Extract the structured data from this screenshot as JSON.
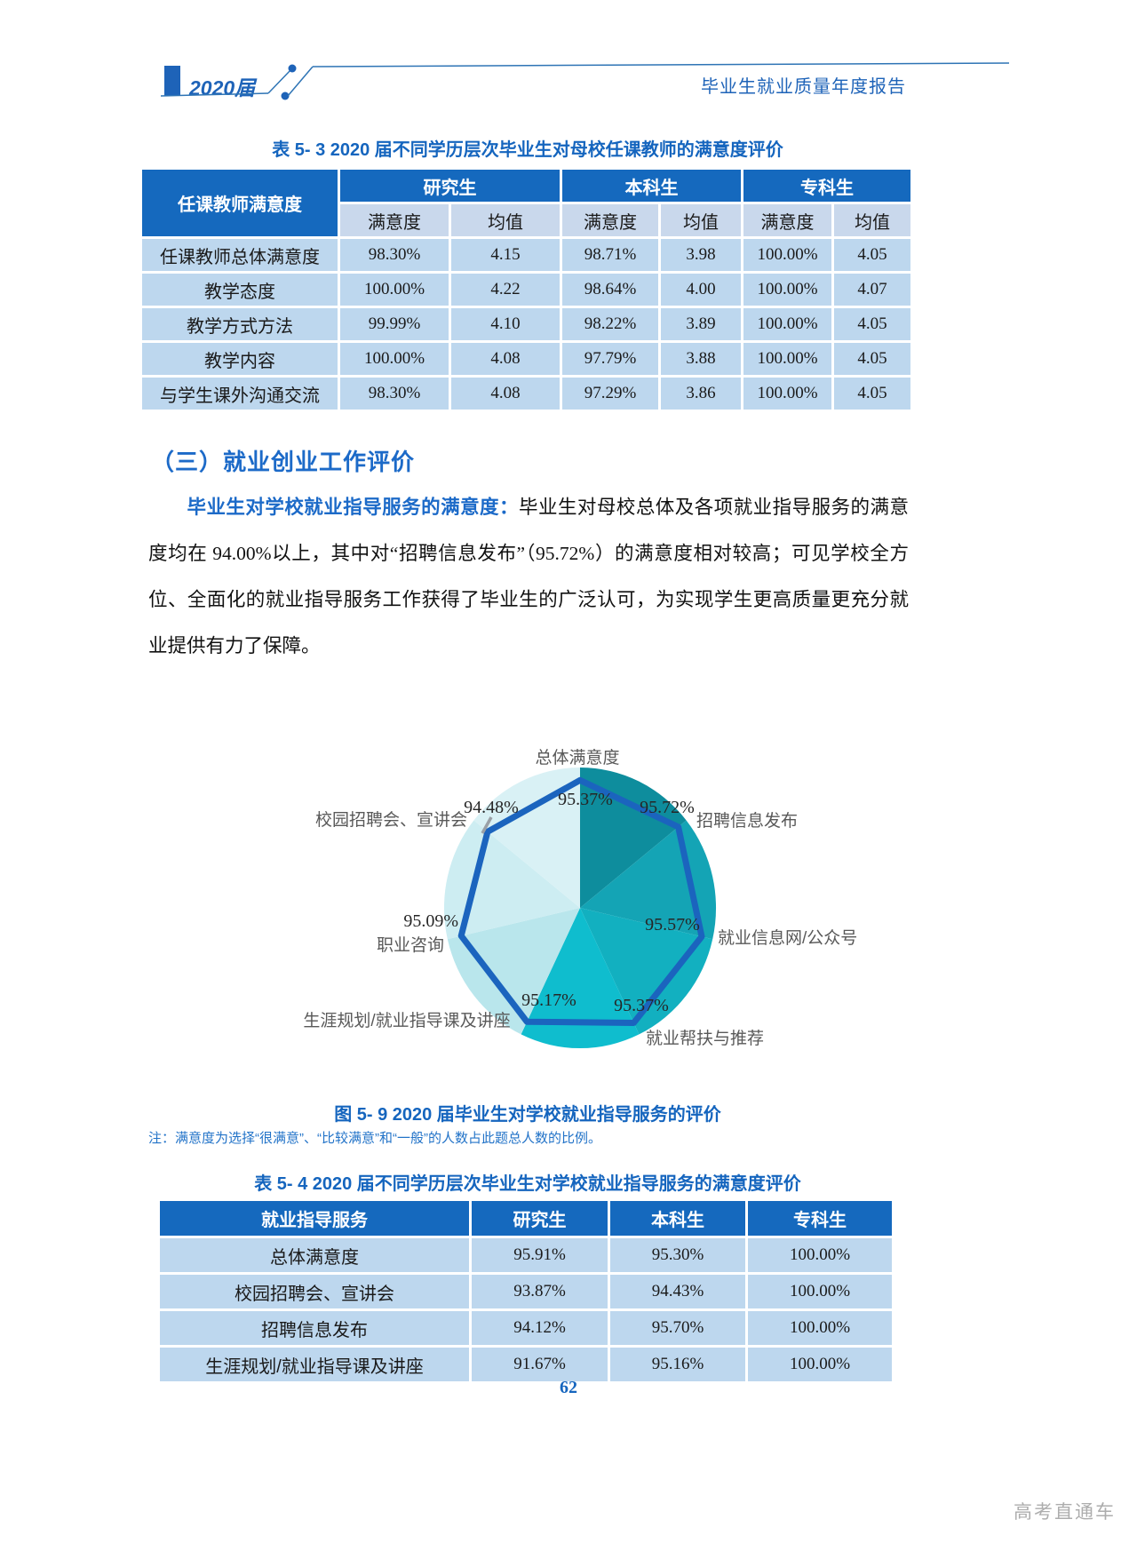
{
  "header": {
    "cohort": "2020届",
    "report_title": "毕业生就业质量年度报告"
  },
  "table53": {
    "title": "表 5- 3  2020 届不同学历层次毕业生对母校任课教师的满意度评价",
    "corner": "任课教师满意度",
    "groups": [
      "研究生",
      "本科生",
      "专科生"
    ],
    "subheaders": [
      "满意度",
      "均值"
    ],
    "rows": [
      {
        "label": "任课教师总体满意度",
        "cells": [
          "98.30%",
          "4.15",
          "98.71%",
          "3.98",
          "100.00%",
          "4.05"
        ]
      },
      {
        "label": "教学态度",
        "cells": [
          "100.00%",
          "4.22",
          "98.64%",
          "4.00",
          "100.00%",
          "4.07"
        ]
      },
      {
        "label": "教学方式方法",
        "cells": [
          "99.99%",
          "4.10",
          "98.22%",
          "3.89",
          "100.00%",
          "4.05"
        ]
      },
      {
        "label": "教学内容",
        "cells": [
          "100.00%",
          "4.08",
          "97.79%",
          "3.88",
          "100.00%",
          "4.05"
        ]
      },
      {
        "label": "与学生课外沟通交流",
        "cells": [
          "98.30%",
          "4.08",
          "97.29%",
          "3.86",
          "100.00%",
          "4.05"
        ]
      }
    ]
  },
  "section": {
    "heading": "（三）就业创业工作评价",
    "lead": "毕业生对学校就业指导服务的满意度：",
    "body": "毕业生对母校总体及各项就业指导服务的满意度均在 94.00%以上，其中对“招聘信息发布”（95.72%）的满意度相对较高；可见学校全方位、全面化的就业指导服务工作获得了毕业生的广泛认可，为实现学生更高质量更充分就业提供有力了保障。"
  },
  "chart_data": {
    "type": "radar",
    "title": "图 5- 9  2020 届毕业生对学校就业指导服务的评价",
    "categories": [
      "总体满意度",
      "招聘信息发布",
      "就业信息网/公众号",
      "就业帮扶与推荐",
      "生涯规划/就业指导课及讲座",
      "职业咨询",
      "校园招聘会、宣讲会"
    ],
    "values": [
      95.37,
      95.72,
      95.57,
      95.37,
      95.17,
      95.09,
      94.48
    ],
    "value_labels": [
      "95.37%",
      "95.72%",
      "95.57%",
      "95.37%",
      "95.17%",
      "95.09%",
      "94.48%"
    ],
    "axis_note": "seven axes clockwise from top, each sector of the background disc filled with a teal shade",
    "sector_colors": [
      "#0E8D9D",
      "#14A4B5",
      "#12B0C0",
      "#0FBDCE",
      "#B9E6EC",
      "#CDEDF2",
      "#D9F1F5"
    ],
    "line_color": "#1B64BE"
  },
  "figure": {
    "caption": "图 5- 9  2020 届毕业生对学校就业指导服务的评价",
    "note": "注：满意度为选择“很满意”、“比较满意”和“一般”的人数占此题总人数的比例。"
  },
  "table54": {
    "title": "表 5- 4  2020 届不同学历层次毕业生对学校就业指导服务的满意度评价",
    "headers": [
      "就业指导服务",
      "研究生",
      "本科生",
      "专科生"
    ],
    "rows": [
      {
        "label": "总体满意度",
        "cells": [
          "95.91%",
          "95.30%",
          "100.00%"
        ]
      },
      {
        "label": "校园招聘会、宣讲会",
        "cells": [
          "93.87%",
          "94.43%",
          "100.00%"
        ]
      },
      {
        "label": "招聘信息发布",
        "cells": [
          "94.12%",
          "95.70%",
          "100.00%"
        ]
      },
      {
        "label": "生涯规划/就业指导课及讲座",
        "cells": [
          "91.67%",
          "95.16%",
          "100.00%"
        ]
      }
    ]
  },
  "page": {
    "number": "62",
    "watermark": "高考直通车"
  }
}
